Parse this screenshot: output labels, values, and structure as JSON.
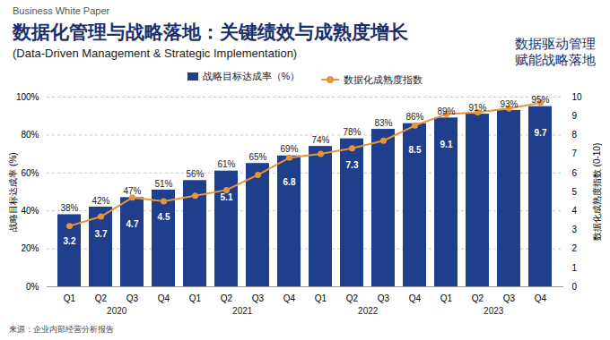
{
  "chart_data": {
    "type": "bar",
    "header": "Business White Paper",
    "title": "数据化管理与战略落地：关键绩效与成熟度增长",
    "subtitle": "(Data-Driven Management & Strategic Implementation)",
    "side_text": [
      "数据驱动管理",
      "赋能战略落地"
    ],
    "source": "来源：企业内部经营分析报告",
    "categories": [
      "Q1",
      "Q2",
      "Q3",
      "Q4",
      "Q1",
      "Q2",
      "Q3",
      "Q4",
      "Q1",
      "Q2",
      "Q3",
      "Q4",
      "Q1",
      "Q2",
      "Q3",
      "Q4"
    ],
    "x_group_labels": [
      "2020",
      "2021",
      "2022",
      "2023"
    ],
    "ylabel": "战略目标达成率 (%)",
    "y2label": "数据化成熟度指数 (0-10)",
    "ylim": [
      0,
      100
    ],
    "yticks": [
      {
        "value": 0,
        "label": "0%"
      },
      {
        "value": 20,
        "label": "20%"
      },
      {
        "value": 40,
        "label": "40%"
      },
      {
        "value": 60,
        "label": "60%"
      },
      {
        "value": 80,
        "label": "80%"
      },
      {
        "value": 100,
        "label": "100%"
      }
    ],
    "y2lim": [
      0,
      10
    ],
    "y2ticks": [
      0,
      1,
      2,
      3,
      4,
      5,
      6,
      7,
      8,
      9,
      10
    ],
    "grid": true,
    "data_labels": true,
    "legend": "top",
    "series": [
      {
        "name": "战略目标达成率（%）",
        "type": "bar",
        "color": "#1f3f8c",
        "values": [
          38,
          42,
          47,
          51,
          56,
          61,
          65,
          69,
          74,
          78,
          83,
          86,
          89,
          91,
          93,
          95
        ],
        "value_labels": [
          "38%",
          "42%",
          "47%",
          "51%",
          "56%",
          "61%",
          "65%",
          "69%",
          "74%",
          "78%",
          "83%",
          "86%",
          "89%",
          "91%",
          "93%",
          "95%"
        ]
      },
      {
        "name": "数据化成熟度指数",
        "type": "line",
        "axis": "y2",
        "color": "#e8943a",
        "marker": "circle",
        "values": [
          3.2,
          3.7,
          4.7,
          4.5,
          4.8,
          5.1,
          5.9,
          6.8,
          7.0,
          7.3,
          7.7,
          8.5,
          9.1,
          9.2,
          9.4,
          9.7
        ],
        "value_labels": [
          "3.2",
          "3.7",
          "4.7",
          "4.5",
          null,
          "5.1",
          null,
          "6.8",
          null,
          "7.3",
          null,
          "8.5",
          "9.1",
          null,
          null,
          "9.7"
        ]
      }
    ]
  }
}
